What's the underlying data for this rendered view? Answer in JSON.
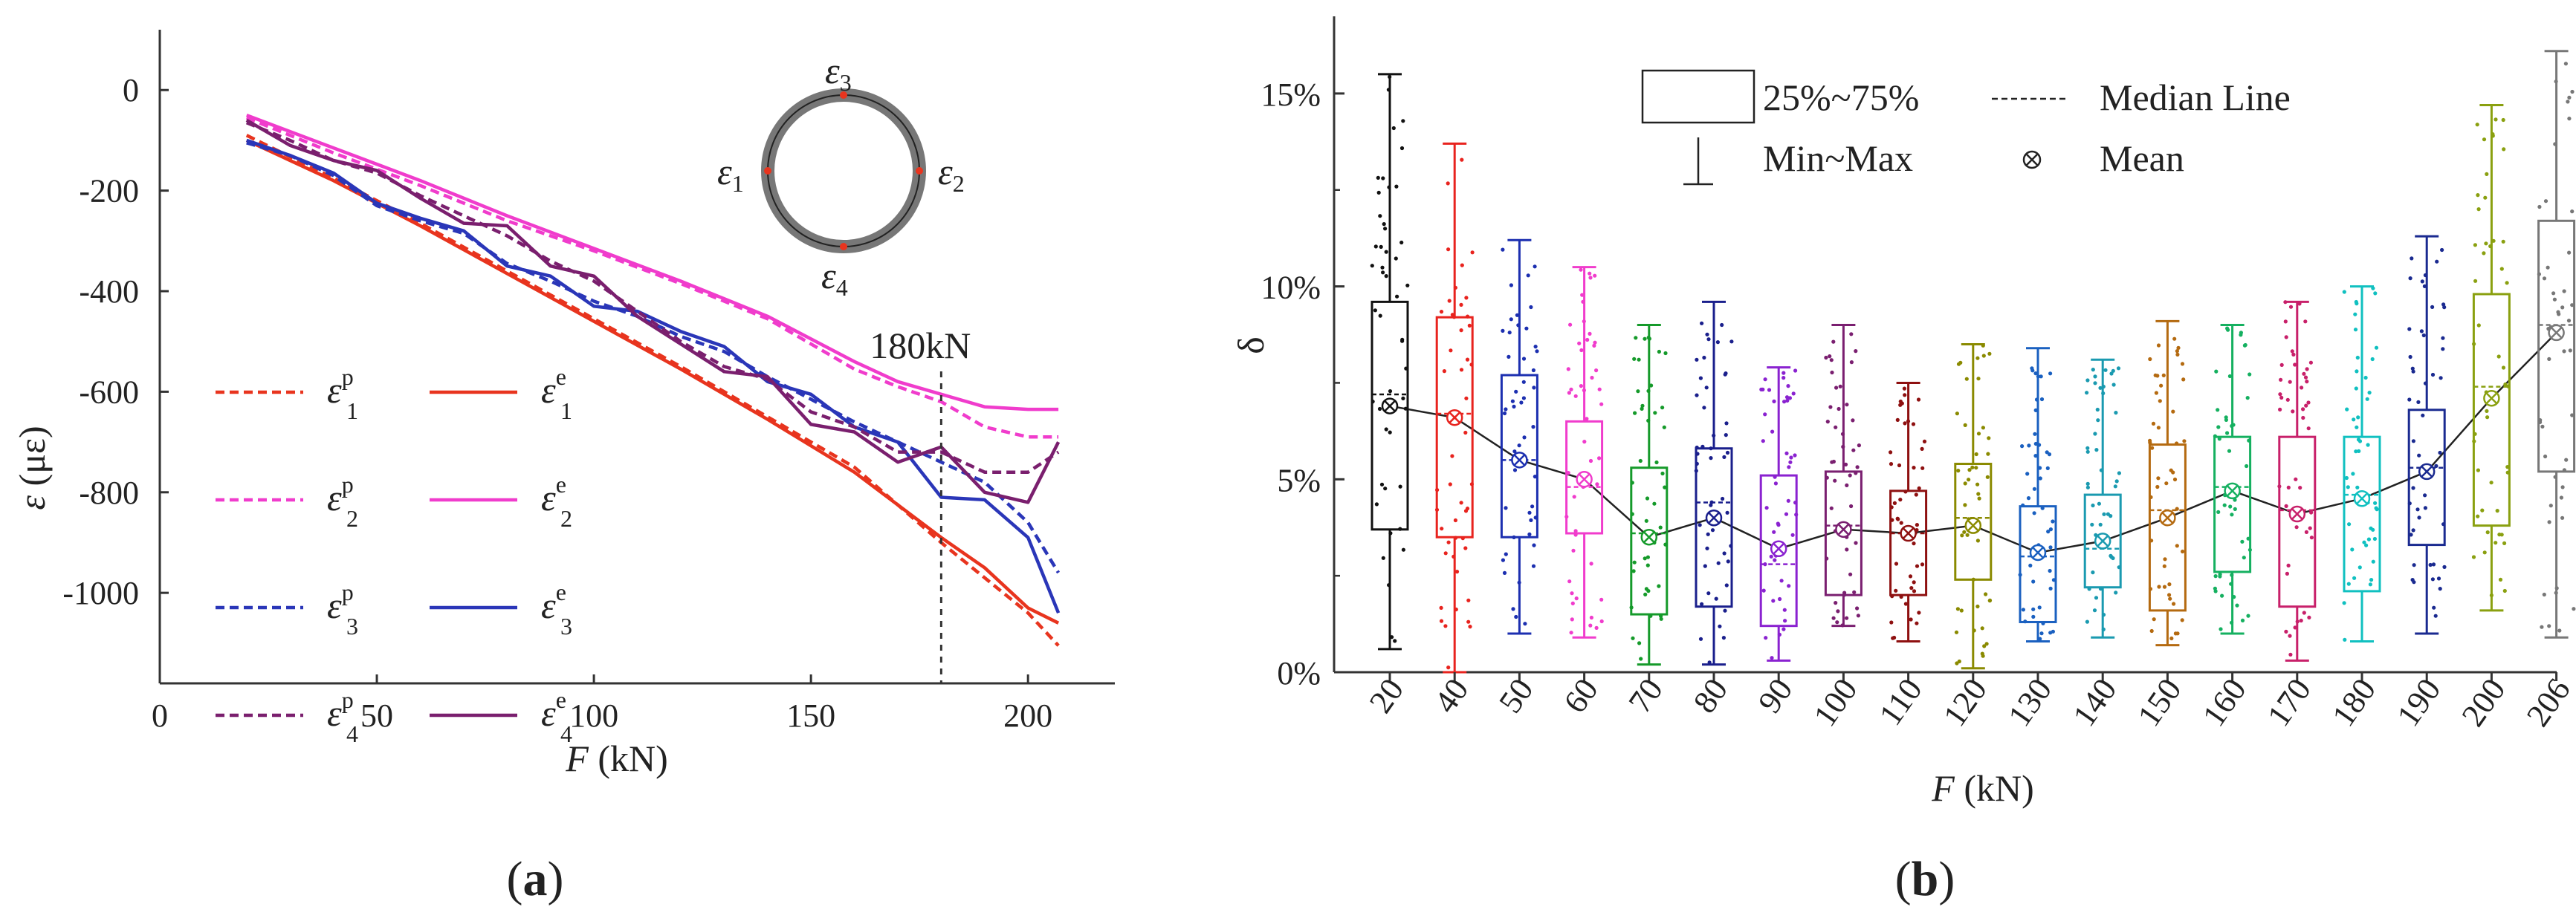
{
  "chart_data": [
    {
      "type": "line",
      "panel_label": "(a)",
      "panel_letter": "a",
      "xlabel_var": "F",
      "xlabel_unit": " (kN)",
      "ylabel_var": "ε",
      "ylabel_unit": " (με)",
      "xlim": [
        0,
        220
      ],
      "ylim": [
        -1180,
        120
      ],
      "xticks": [
        "0",
        "50",
        "100",
        "150",
        "200"
      ],
      "yticks": [
        "0",
        "-200",
        "-400",
        "-600",
        "-800",
        "-1000"
      ],
      "annotation": "180kN",
      "annotation_x": 180,
      "colors": {
        "s1": "#e8341e",
        "s2": "#f03ccc",
        "s3": "#2a36b8",
        "s4": "#7a1f6e"
      },
      "gauge_labels": [
        "ε3",
        "ε1",
        "ε2",
        "ε4"
      ],
      "legend": [
        {
          "sym": "ε",
          "sup": "p",
          "sub": "1",
          "dashed": true,
          "series": "s1"
        },
        {
          "sym": "ε",
          "sup": "e",
          "sub": "1",
          "dashed": false,
          "series": "s1"
        },
        {
          "sym": "ε",
          "sup": "p",
          "sub": "2",
          "dashed": true,
          "series": "s2"
        },
        {
          "sym": "ε",
          "sup": "e",
          "sub": "2",
          "dashed": false,
          "series": "s2"
        },
        {
          "sym": "ε",
          "sup": "p",
          "sub": "3",
          "dashed": true,
          "series": "s3"
        },
        {
          "sym": "ε",
          "sup": "e",
          "sub": "3",
          "dashed": false,
          "series": "s3"
        },
        {
          "sym": "ε",
          "sup": "p",
          "sub": "4",
          "dashed": true,
          "series": "s4"
        },
        {
          "sym": "ε",
          "sup": "e",
          "sub": "4",
          "dashed": false,
          "series": "s4"
        }
      ],
      "series": [
        {
          "name": "ε1 p",
          "color_key": "s1",
          "dashed": true,
          "x": [
            20,
            40,
            60,
            80,
            100,
            120,
            140,
            160,
            180,
            200,
            207
          ],
          "y": [
            -90,
            -175,
            -265,
            -360,
            -455,
            -550,
            -650,
            -750,
            -900,
            -1040,
            -1105
          ]
        },
        {
          "name": "ε1 e",
          "color_key": "s1",
          "dashed": false,
          "x": [
            20,
            40,
            60,
            80,
            100,
            120,
            140,
            160,
            180,
            190,
            200,
            207
          ],
          "y": [
            -100,
            -180,
            -270,
            -365,
            -460,
            -555,
            -655,
            -760,
            -890,
            -950,
            -1030,
            -1060
          ]
        },
        {
          "name": "ε2 p",
          "color_key": "s2",
          "dashed": true,
          "x": [
            20,
            40,
            60,
            80,
            100,
            120,
            140,
            160,
            170,
            180,
            190,
            200,
            207
          ],
          "y": [
            -55,
            -125,
            -190,
            -260,
            -320,
            -385,
            -455,
            -555,
            -590,
            -620,
            -670,
            -690,
            -690
          ]
        },
        {
          "name": "ε2 e",
          "color_key": "s2",
          "dashed": false,
          "x": [
            20,
            40,
            60,
            80,
            100,
            120,
            140,
            160,
            170,
            180,
            190,
            200,
            207
          ],
          "y": [
            -50,
            -115,
            -180,
            -250,
            -315,
            -380,
            -450,
            -540,
            -580,
            -605,
            -630,
            -635,
            -635
          ]
        },
        {
          "name": "ε3 p",
          "color_key": "s3",
          "dashed": true,
          "x": [
            20,
            30,
            40,
            50,
            60,
            70,
            80,
            90,
            100,
            110,
            120,
            130,
            140,
            150,
            160,
            170,
            180,
            190,
            200,
            207
          ],
          "y": [
            -105,
            -130,
            -170,
            -230,
            -260,
            -285,
            -345,
            -380,
            -420,
            -450,
            -490,
            -520,
            -570,
            -615,
            -660,
            -700,
            -740,
            -780,
            -860,
            -960
          ]
        },
        {
          "name": "ε3 e",
          "color_key": "s3",
          "dashed": false,
          "x": [
            20,
            30,
            40,
            50,
            60,
            70,
            80,
            90,
            100,
            110,
            120,
            130,
            140,
            150,
            160,
            170,
            180,
            190,
            200,
            207
          ],
          "y": [
            -100,
            -130,
            -165,
            -225,
            -255,
            -280,
            -350,
            -370,
            -430,
            -440,
            -480,
            -510,
            -580,
            -605,
            -670,
            -700,
            -810,
            -815,
            -890,
            -1040
          ]
        },
        {
          "name": "ε4 p",
          "color_key": "s4",
          "dashed": true,
          "x": [
            20,
            30,
            40,
            50,
            60,
            70,
            80,
            90,
            100,
            110,
            120,
            130,
            140,
            150,
            160,
            170,
            180,
            190,
            200,
            207
          ],
          "y": [
            -65,
            -100,
            -140,
            -165,
            -210,
            -250,
            -290,
            -340,
            -380,
            -440,
            -500,
            -550,
            -575,
            -640,
            -670,
            -720,
            -720,
            -760,
            -760,
            -720
          ]
        },
        {
          "name": "ε4 e",
          "color_key": "s4",
          "dashed": false,
          "x": [
            20,
            30,
            40,
            50,
            60,
            70,
            80,
            90,
            100,
            110,
            120,
            130,
            140,
            150,
            160,
            170,
            180,
            190,
            200,
            207
          ],
          "y": [
            -60,
            -110,
            -140,
            -160,
            -215,
            -265,
            -270,
            -350,
            -370,
            -450,
            -505,
            -560,
            -570,
            -665,
            -680,
            -740,
            -710,
            -800,
            -820,
            -700
          ]
        }
      ]
    },
    {
      "type": "box",
      "panel_label": "(b)",
      "panel_letter": "b",
      "xlabel_var": "F",
      "xlabel_unit": " (kN)",
      "ylabel": "δ",
      "ylim": [
        0,
        17
      ],
      "yticks": [
        "0%",
        "5%",
        "10%",
        "15%"
      ],
      "ytick_values": [
        0,
        5,
        10,
        15
      ],
      "legend_box": "25%~75%",
      "legend_median": "Median Line",
      "legend_minmax": "Min~Max",
      "legend_mean": "Mean",
      "categories": [
        "20",
        "40",
        "50",
        "60",
        "70",
        "80",
        "90",
        "100",
        "110",
        "120",
        "130",
        "140",
        "150",
        "160",
        "170",
        "180",
        "190",
        "200",
        "206"
      ],
      "colors": [
        "#111111",
        "#e8231e",
        "#1c2fb0",
        "#f03ccc",
        "#159a2a",
        "#1a1f8c",
        "#8a22d0",
        "#7a1f70",
        "#8e1010",
        "#8a8a00",
        "#1a60c0",
        "#1a9ab0",
        "#b46a10",
        "#15b060",
        "#c8206a",
        "#10c0c0",
        "#1a2a90",
        "#8aa010",
        "#777777"
      ],
      "boxes": [
        {
          "min": 0.6,
          "q1": 3.7,
          "median": 7.2,
          "q3": 9.6,
          "max": 15.5,
          "mean": 6.9
        },
        {
          "min": 0.0,
          "q1": 3.5,
          "median": 6.7,
          "q3": 9.2,
          "max": 13.7,
          "mean": 6.6
        },
        {
          "min": 1.0,
          "q1": 3.5,
          "median": 5.5,
          "q3": 7.7,
          "max": 11.2,
          "mean": 5.5
        },
        {
          "min": 0.9,
          "q1": 3.6,
          "median": 4.8,
          "q3": 6.5,
          "max": 10.5,
          "mean": 5.0
        },
        {
          "min": 0.2,
          "q1": 1.5,
          "median": 3.6,
          "q3": 5.3,
          "max": 9.0,
          "mean": 3.5
        },
        {
          "min": 0.2,
          "q1": 1.7,
          "median": 4.4,
          "q3": 5.8,
          "max": 9.6,
          "mean": 4.0
        },
        {
          "min": 0.3,
          "q1": 1.2,
          "median": 2.8,
          "q3": 5.1,
          "max": 7.9,
          "mean": 3.2
        },
        {
          "min": 1.2,
          "q1": 2.0,
          "median": 3.8,
          "q3": 5.2,
          "max": 9.0,
          "mean": 3.7
        },
        {
          "min": 0.8,
          "q1": 2.0,
          "median": 3.6,
          "q3": 4.7,
          "max": 7.5,
          "mean": 3.6
        },
        {
          "min": 0.1,
          "q1": 2.4,
          "median": 4.0,
          "q3": 5.4,
          "max": 8.5,
          "mean": 3.8
        },
        {
          "min": 0.8,
          "q1": 1.3,
          "median": 3.0,
          "q3": 4.3,
          "max": 8.4,
          "mean": 3.1
        },
        {
          "min": 0.9,
          "q1": 2.2,
          "median": 3.2,
          "q3": 4.6,
          "max": 8.1,
          "mean": 3.4
        },
        {
          "min": 0.7,
          "q1": 1.6,
          "median": 4.2,
          "q3": 5.9,
          "max": 9.1,
          "mean": 4.0
        },
        {
          "min": 1.0,
          "q1": 2.6,
          "median": 4.8,
          "q3": 6.1,
          "max": 9.0,
          "mean": 4.7
        },
        {
          "min": 0.3,
          "q1": 1.7,
          "median": 4.2,
          "q3": 6.1,
          "max": 9.6,
          "mean": 4.1
        },
        {
          "min": 0.8,
          "q1": 2.1,
          "median": 4.6,
          "q3": 6.1,
          "max": 10.0,
          "mean": 4.5
        },
        {
          "min": 1.0,
          "q1": 3.3,
          "median": 5.3,
          "q3": 6.8,
          "max": 11.3,
          "mean": 5.2
        },
        {
          "min": 1.6,
          "q1": 3.8,
          "median": 7.4,
          "q3": 9.8,
          "max": 14.7,
          "mean": 7.1
        },
        {
          "min": 0.9,
          "q1": 5.2,
          "median": 9.0,
          "q3": 11.7,
          "max": 16.1,
          "mean": 8.8
        }
      ]
    }
  ]
}
